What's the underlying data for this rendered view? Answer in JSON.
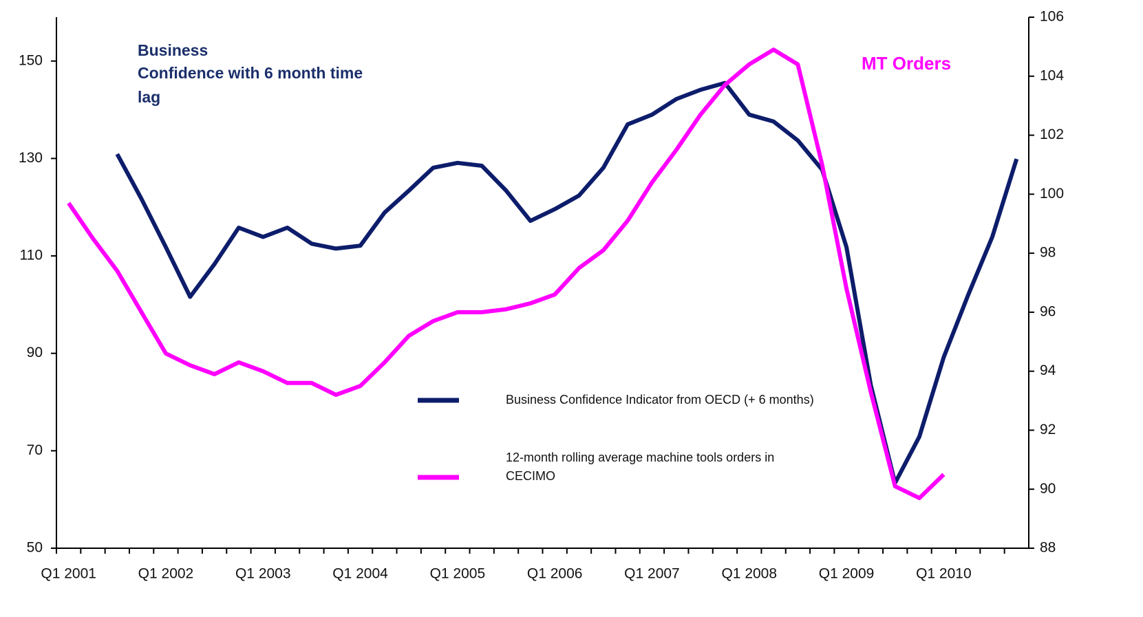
{
  "chart_data": {
    "type": "line",
    "categories": [
      "Q1 2001",
      null,
      null,
      null,
      "Q1 2002",
      null,
      null,
      null,
      "Q1 2003",
      null,
      null,
      null,
      "Q1 2004",
      null,
      null,
      null,
      "Q1 2005",
      null,
      null,
      null,
      "Q1 2006",
      null,
      null,
      null,
      "Q1 2007",
      null,
      null,
      null,
      "Q1 2008",
      null,
      null,
      null,
      "Q1 2009",
      null,
      null,
      null,
      "Q1 2010",
      null,
      null,
      null
    ],
    "series": [
      {
        "name": "Business Confidence Indicator from OECD (+ 6 months)",
        "color": "#0d1d6b",
        "values": [
          null,
          null,
          130.9,
          121.7,
          111.8,
          101.6,
          108.3,
          115.8,
          113.9,
          115.8,
          112.5,
          111.5,
          112.1,
          118.9,
          123.4,
          128.1,
          129.1,
          128.5,
          123.4,
          117.2,
          119.6,
          122.4,
          128.1,
          137.0,
          139.0,
          142.2,
          144.1,
          145.5,
          139.0,
          137.6,
          133.7,
          127.7,
          111.8,
          83.5,
          63.4,
          72.9,
          89.2,
          101.9,
          113.9,
          129.9
        ]
      },
      {
        "name": "12-month rolling average machine tools orders in CECIMO",
        "color": "#ff00ff",
        "axis": "y2",
        "values": [
          99.7,
          98.5,
          97.4,
          96.0,
          94.6,
          94.2,
          93.9,
          94.3,
          94.0,
          93.6,
          93.6,
          93.2,
          93.5,
          94.3,
          95.2,
          95.7,
          96.0,
          96.0,
          96.1,
          96.3,
          96.6,
          97.5,
          98.1,
          99.1,
          100.4,
          101.5,
          102.7,
          103.7,
          104.4,
          104.9,
          104.4,
          101.0,
          96.8,
          93.3,
          90.1,
          89.7,
          90.5,
          null,
          null,
          null
        ]
      }
    ],
    "ylim": [
      50,
      159
    ],
    "yticks": [
      50,
      70,
      90,
      110,
      130,
      150
    ],
    "y2lim": [
      88,
      106
    ],
    "y2ticks": [
      88,
      90,
      92,
      94,
      96,
      98,
      100,
      102,
      104,
      106
    ],
    "annotation_left": [
      "Business",
      "Confidence with 6 month time",
      "lag"
    ],
    "annotation_right": "MT Orders",
    "grid": false
  }
}
